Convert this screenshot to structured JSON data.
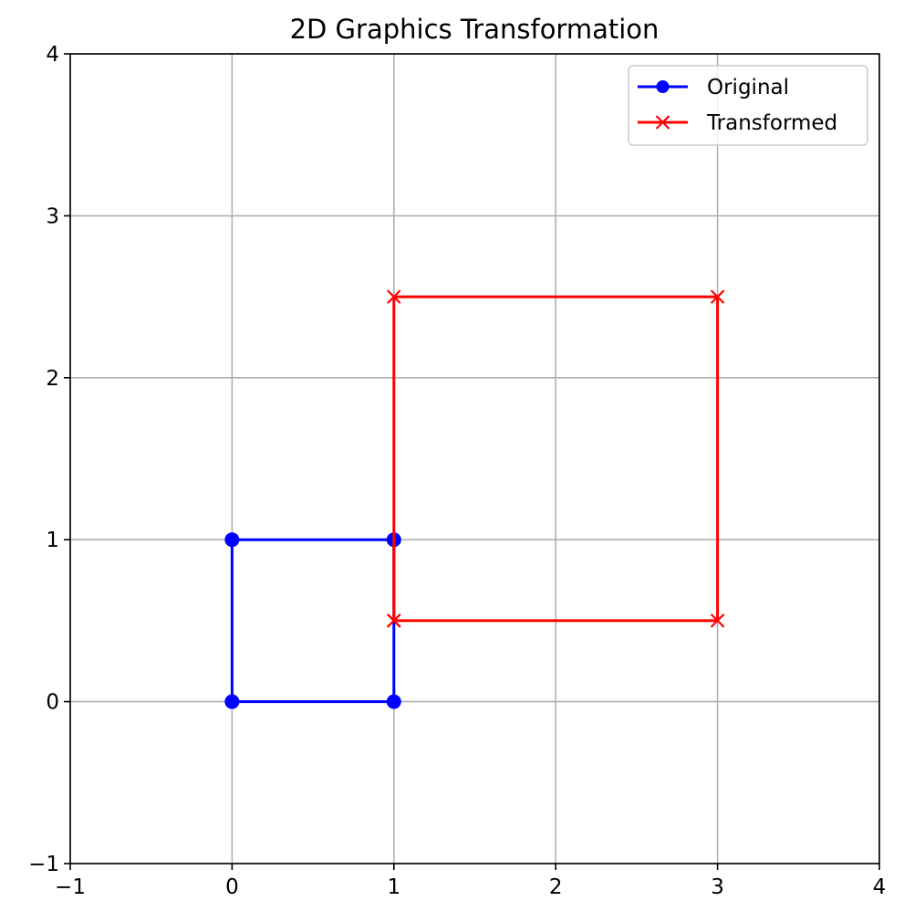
{
  "chart_data": {
    "type": "line",
    "title": "2D Graphics Transformation",
    "xlabel": "",
    "ylabel": "",
    "xlim": [
      -1,
      4
    ],
    "ylim": [
      -1,
      4
    ],
    "x_ticks": [
      "−1",
      "0",
      "1",
      "2",
      "3",
      "4"
    ],
    "y_ticks": [
      "−1",
      "0",
      "1",
      "2",
      "3",
      "4"
    ],
    "x_tick_values": [
      -1,
      0,
      1,
      2,
      3,
      4
    ],
    "y_tick_values": [
      -1,
      0,
      1,
      2,
      3,
      4
    ],
    "grid": true,
    "legend_position": "top-right",
    "series": [
      {
        "name": "Original",
        "color": "#0000ff",
        "marker": "circle",
        "points": [
          [
            0,
            0
          ],
          [
            1,
            0
          ],
          [
            1,
            1
          ],
          [
            0,
            1
          ],
          [
            0,
            0
          ]
        ]
      },
      {
        "name": "Transformed",
        "color": "#ff0000",
        "marker": "x",
        "points": [
          [
            1,
            0.5
          ],
          [
            3,
            0.5
          ],
          [
            3,
            2.5
          ],
          [
            1,
            2.5
          ],
          [
            1,
            0.5
          ]
        ]
      }
    ]
  }
}
